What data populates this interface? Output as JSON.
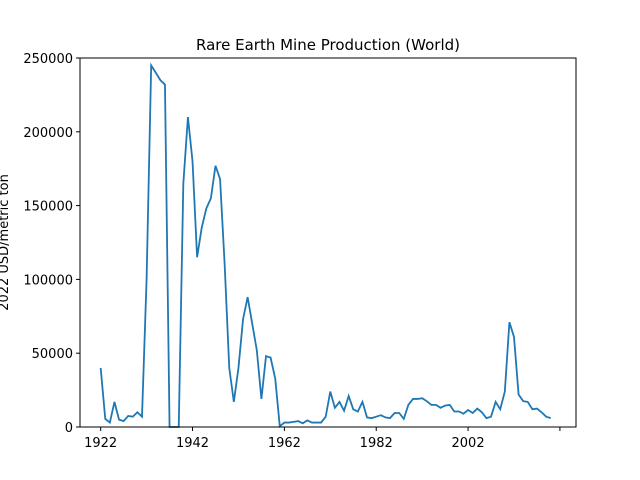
{
  "chart_data": {
    "type": "line",
    "title": "Rare Earth Mine Production (World)",
    "xlabel": "",
    "ylabel": "2022 USD/metric ton",
    "xlim": [
      1917.5,
      2025.5
    ],
    "ylim": [
      0,
      250000
    ],
    "x_ticks": [
      1922,
      1942,
      1962,
      1982,
      2002,
      2022
    ],
    "x_tick_labels": [
      "1922",
      "1942",
      "1962",
      "1982",
      "2002",
      ""
    ],
    "y_ticks": [
      0,
      50000,
      100000,
      150000,
      200000,
      250000
    ],
    "y_tick_labels": [
      "0",
      "50000",
      "100000",
      "150000",
      "200000",
      "250000"
    ],
    "grid": false,
    "color": "#1f77b4",
    "series": [
      {
        "x": [
          1922,
          1923,
          1924,
          1925,
          1926,
          1927,
          1928,
          1929,
          1930,
          1931,
          1932,
          1933,
          1934,
          1935,
          1936,
          1937,
          1938,
          1939,
          1940,
          1941,
          1942,
          1943,
          1944,
          1945,
          1946,
          1947,
          1948,
          1949,
          1950,
          1951,
          1952,
          1953,
          1954,
          1955,
          1956,
          1957,
          1958,
          1959,
          1960,
          1961,
          1962,
          1963,
          1964,
          1965,
          1966,
          1967,
          1968,
          1969,
          1970,
          1971,
          1972,
          1973,
          1974,
          1975,
          1976,
          1977,
          1978,
          1979,
          1980,
          1981,
          1982,
          1983,
          1984,
          1985,
          1986,
          1987,
          1988,
          1989,
          1990,
          1991,
          1992,
          1993,
          1994,
          1995,
          1996,
          1997,
          1998,
          1999,
          2000,
          2001,
          2002,
          2003,
          2004,
          2005,
          2006,
          2007,
          2008,
          2009,
          2010,
          2011,
          2012,
          2013,
          2014,
          2015,
          2016,
          2017,
          2018,
          2019,
          2020
        ],
        "y": [
          40000,
          5500,
          3000,
          17000,
          5000,
          4000,
          7500,
          7000,
          10000,
          7000,
          100000,
          245000,
          240000,
          235000,
          232000,
          0,
          0,
          0,
          165000,
          210000,
          180000,
          115000,
          135000,
          148000,
          155000,
          177000,
          168000,
          110000,
          40000,
          17000,
          40000,
          73000,
          88000,
          70000,
          52000,
          19000,
          48000,
          47000,
          33000,
          500,
          3000,
          3000,
          3500,
          4000,
          2500,
          4500,
          3000,
          3000,
          3000,
          7000,
          24000,
          13000,
          17000,
          11000,
          21000,
          12000,
          10500,
          17000,
          6500,
          6000,
          7000,
          8000,
          6500,
          6000,
          9500,
          9500,
          5500,
          15000,
          19000,
          19000,
          19500,
          17500,
          15000,
          15000,
          13000,
          14500,
          15000,
          10500,
          10500,
          9000,
          11500,
          9500,
          12500,
          10000,
          6000,
          7000,
          17000,
          12000,
          24000,
          71000,
          61000,
          22000,
          17500,
          17000,
          12000,
          12500,
          10000,
          7000,
          6000
        ]
      }
    ]
  }
}
